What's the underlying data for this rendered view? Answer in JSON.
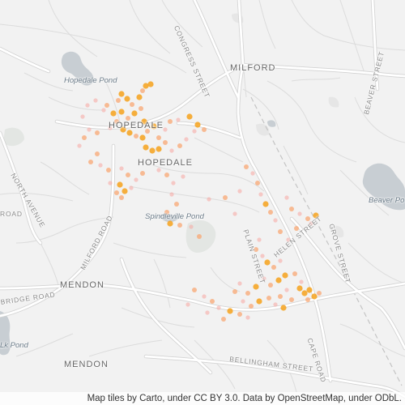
{
  "map": {
    "theme": "light-gray",
    "colors": {
      "background": "#f2f2f2",
      "road_major": "#ffffff",
      "road_minor": "#dedede",
      "water": "#c8ced3",
      "park": "#e3e6e3",
      "railway": "#c4c4c4",
      "marker_high": "#f6a21c",
      "marker_mid": "#f9a36b",
      "marker_low": "#f7a5a0"
    },
    "labels": {
      "milford": "MILFORD",
      "hopedale_north": "HOPEDALE",
      "hopedale_south": "HOPEDALE",
      "mendon_north": "MENDON",
      "mendon_south": "MENDON",
      "hopedale_pond": "Hopedale Pond",
      "spindleville_pond": "Spindleville Pond",
      "beaver_pond": "Beaver Po",
      "lake_pond": "Lk Pond",
      "congress_street": "CONGRESS STREET",
      "beaver_street": "BEAVER STREET",
      "north_avenue": "NORTH AVENUE",
      "milford_road": "MILFORD ROAD",
      "plain_street": "PLAIN STREET",
      "helen_street": "HELEN STREET",
      "grove_street": "GROVE STREET",
      "road_west": "ROAD",
      "bridge_road": "BRIDGE ROAD",
      "bellingham_street": "BELLINGHAM STREET",
      "cape_road": "CAPE ROAD"
    },
    "attribution": "Map tiles by Carto, under CC BY 3.0. Data by OpenStreetMap, under ODbL."
  }
}
